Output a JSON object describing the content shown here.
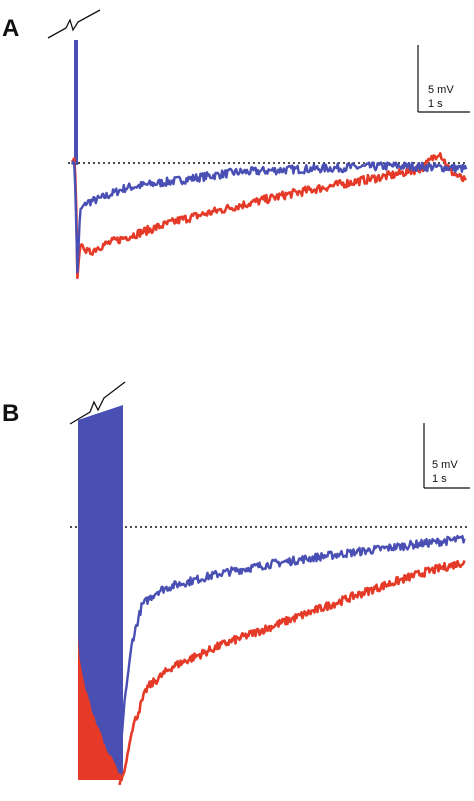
{
  "figure": {
    "panels": [
      {
        "label": "A",
        "scale_bar": {
          "voltage_label": "5 mV",
          "time_label": "1 s"
        }
      },
      {
        "label": "B",
        "scale_bar": {
          "voltage_label": "5 mV",
          "time_label": "1 s"
        }
      }
    ]
  },
  "colors": {
    "blue_trace": "#4a4fb4",
    "red_trace": "#e53a28",
    "baseline": "#111111",
    "axes": "#111111"
  },
  "chart_data": [
    {
      "type": "line",
      "panel": "A",
      "units": {
        "x": "s",
        "y": "mV relative to baseline"
      },
      "baseline_mV": 0,
      "baseline_style": "dotted",
      "stimulus_artifact": {
        "t_start_s": 0.05,
        "t_end_s": 0.1,
        "break_marker": true
      },
      "series": [
        {
          "color": "blue",
          "x": [
            0.0,
            0.05,
            0.1,
            0.15,
            0.25,
            0.5,
            1.0,
            2.0,
            3.0,
            4.0,
            5.0,
            6.0,
            7.0,
            7.3
          ],
          "y": [
            0.0,
            0.0,
            -11.5,
            -5.0,
            -4.2,
            -3.8,
            -2.6,
            -1.8,
            -1.0,
            -0.7,
            -0.5,
            -0.3,
            -0.5,
            -0.6
          ]
        },
        {
          "color": "red",
          "x": [
            0.0,
            0.05,
            0.08,
            0.1,
            0.15,
            0.3,
            0.5,
            1.0,
            2.0,
            3.0,
            4.0,
            5.0,
            6.0,
            6.5,
            6.8,
            7.0,
            7.3
          ],
          "y": [
            0.0,
            0.5,
            -5.0,
            -12.0,
            -8.5,
            -9.5,
            -8.8,
            -7.8,
            -6.0,
            -4.6,
            -3.3,
            -2.2,
            -1.2,
            -0.5,
            1.2,
            -0.8,
            -2.0
          ]
        }
      ]
    },
    {
      "type": "line",
      "panel": "B",
      "units": {
        "x": "s",
        "y": "mV relative to baseline"
      },
      "baseline_mV": 0,
      "baseline_style": "dotted",
      "stimulus_artifact": {
        "t_start_s": 0.1,
        "t_end_s": 0.95,
        "break_marker": true
      },
      "series": [
        {
          "color": "blue",
          "x": [
            0.95,
            1.05,
            1.2,
            1.4,
            1.7,
            2.0,
            2.5,
            3.0,
            4.0,
            5.0,
            6.0,
            7.0,
            7.85
          ],
          "y": [
            -26.0,
            -19.0,
            -12.5,
            -8.5,
            -7.0,
            -6.4,
            -5.7,
            -5.0,
            -4.0,
            -3.2,
            -2.5,
            -1.8,
            -1.3
          ]
        },
        {
          "color": "red",
          "x": [
            0.95,
            1.05,
            1.2,
            1.5,
            2.0,
            2.5,
            3.0,
            4.0,
            5.0,
            6.0,
            7.0,
            7.85
          ],
          "y": [
            -28.0,
            -26.5,
            -22.0,
            -17.5,
            -15.2,
            -14.0,
            -12.8,
            -10.8,
            -8.8,
            -6.8,
            -5.0,
            -3.8
          ]
        }
      ]
    }
  ]
}
